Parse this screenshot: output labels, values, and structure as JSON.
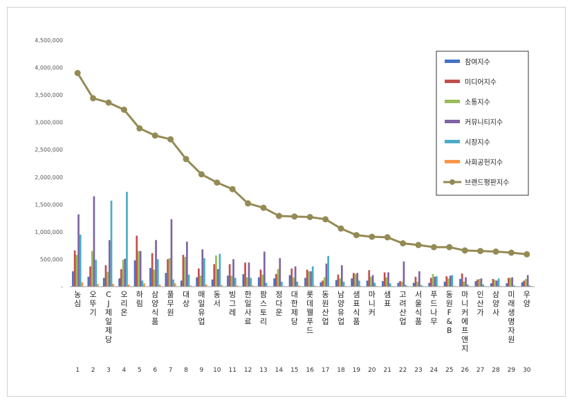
{
  "chart_data": {
    "type": "bar",
    "title": "",
    "xlabel": "",
    "ylabel": "",
    "ylim": [
      0,
      4500000
    ],
    "y_ticks": [
      "-",
      "500,000",
      "1,000,000",
      "1,500,000",
      "2,000,000",
      "2,500,000",
      "3,000,000",
      "3,500,000",
      "4,000,000",
      "4,500,000"
    ],
    "grid": false,
    "legend_position": "top-right",
    "categories": [
      "농심",
      "오뚜기",
      "CJ제일제당",
      "오리온",
      "하림",
      "삼양식품",
      "풀무원",
      "대상",
      "매일유업",
      "동서",
      "빙그레",
      "한일사료",
      "팜스토리",
      "정다운",
      "대한제당",
      "롯데웰푸드",
      "동원산업",
      "남양유업",
      "샘표식품",
      "마니커",
      "샘표",
      "고려산업",
      "서울식품",
      "푸드나무",
      "동원F&B",
      "마니커에프앤지",
      "인산가",
      "삼양사",
      "미래생명자원",
      "우양"
    ],
    "ranks": [
      "1",
      "2",
      "3",
      "4",
      "5",
      "6",
      "7",
      "8",
      "9",
      "10",
      "11",
      "12",
      "13",
      "14",
      "15",
      "16",
      "17",
      "18",
      "19",
      "20",
      "21",
      "22",
      "23",
      "24",
      "25",
      "26",
      "27",
      "28",
      "29",
      "30"
    ],
    "series": [
      {
        "name": "참여지수",
        "color": "#4472c4",
        "values": [
          280000,
          180000,
          160000,
          150000,
          480000,
          340000,
          250000,
          110000,
          170000,
          130000,
          200000,
          230000,
          170000,
          150000,
          210000,
          160000,
          80000,
          120000,
          150000,
          110000,
          100000,
          70000,
          70000,
          70000,
          90000,
          140000,
          100000,
          60000,
          60000,
          80000
        ]
      },
      {
        "name": "미디어지수",
        "color": "#c0504d",
        "values": [
          660000,
          370000,
          390000,
          320000,
          930000,
          610000,
          500000,
          580000,
          330000,
          410000,
          410000,
          440000,
          310000,
          230000,
          330000,
          310000,
          110000,
          220000,
          250000,
          300000,
          260000,
          100000,
          180000,
          160000,
          190000,
          240000,
          130000,
          140000,
          160000,
          110000
        ]
      },
      {
        "name": "소통지수",
        "color": "#9bbb59",
        "values": [
          580000,
          650000,
          270000,
          490000,
          650000,
          310000,
          520000,
          540000,
          200000,
          570000,
          200000,
          170000,
          220000,
          320000,
          170000,
          280000,
          170000,
          150000,
          230000,
          180000,
          170000,
          90000,
          90000,
          230000,
          150000,
          90000,
          140000,
          120000,
          160000,
          140000
        ]
      },
      {
        "name": "커뮤니티지수",
        "color": "#8064a2",
        "values": [
          1320000,
          1650000,
          850000,
          510000,
          650000,
          850000,
          1230000,
          820000,
          680000,
          320000,
          500000,
          440000,
          640000,
          520000,
          370000,
          280000,
          420000,
          390000,
          250000,
          210000,
          260000,
          460000,
          280000,
          180000,
          200000,
          170000,
          150000,
          110000,
          170000,
          210000
        ]
      },
      {
        "name": "시장지수",
        "color": "#4bacc6",
        "values": [
          950000,
          490000,
          1570000,
          1730000,
          110000,
          500000,
          130000,
          220000,
          520000,
          600000,
          160000,
          160000,
          70000,
          90000,
          90000,
          370000,
          560000,
          90000,
          110000,
          70000,
          60000,
          30000,
          30000,
          190000,
          210000,
          40000,
          40000,
          150000,
          20000,
          20000
        ]
      },
      {
        "name": "사회공헌지수",
        "color": "#f79646",
        "values": [
          80000,
          50000,
          50000,
          40000,
          60000,
          40000,
          60000,
          20000,
          40000,
          30000,
          20000,
          20000,
          10000,
          10000,
          20000,
          20000,
          10000,
          10000,
          10000,
          10000,
          10000,
          10000,
          10000,
          10000,
          10000,
          10000,
          10000,
          10000,
          10000,
          10000
        ]
      }
    ],
    "line_series": {
      "name": "브랜드평판지수",
      "color": "#948a54",
      "values": [
        3900000,
        3440000,
        3360000,
        3230000,
        2890000,
        2760000,
        2690000,
        2330000,
        2050000,
        1900000,
        1780000,
        1520000,
        1440000,
        1290000,
        1280000,
        1270000,
        1230000,
        1060000,
        940000,
        910000,
        900000,
        790000,
        760000,
        720000,
        720000,
        660000,
        650000,
        640000,
        620000,
        590000
      ]
    }
  }
}
